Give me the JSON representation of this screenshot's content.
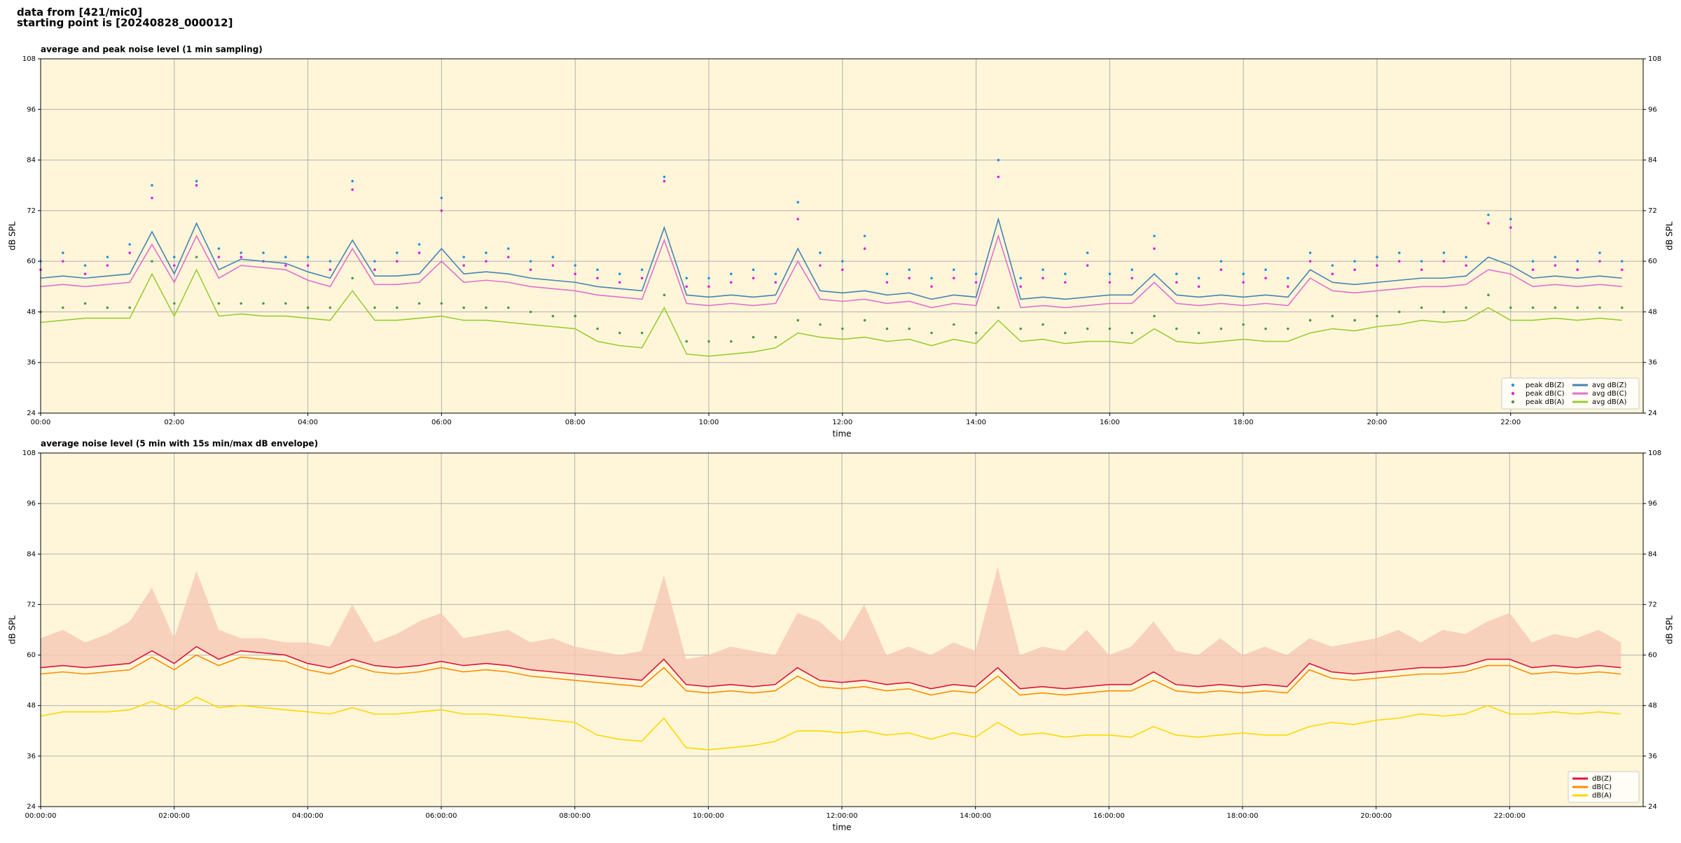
{
  "header": {
    "lines": [
      "data from [421/mic0]",
      "starting point is [20240828_000012]"
    ]
  },
  "chart_data": [
    {
      "type": "line",
      "title": "average and peak noise level (1 min sampling)",
      "xlabel": "time",
      "ylabel": "dB SPL",
      "x": [
        "00:00",
        "00:20",
        "00:40",
        "01:00",
        "01:20",
        "01:40",
        "02:00",
        "02:20",
        "02:40",
        "03:00",
        "03:20",
        "03:40",
        "04:00",
        "04:20",
        "04:40",
        "05:00",
        "05:20",
        "05:40",
        "06:00",
        "06:20",
        "06:40",
        "07:00",
        "07:20",
        "07:40",
        "08:00",
        "08:20",
        "08:40",
        "09:00",
        "09:20",
        "09:40",
        "10:00",
        "10:20",
        "10:40",
        "11:00",
        "11:20",
        "11:40",
        "12:00",
        "12:20",
        "12:40",
        "13:00",
        "13:20",
        "13:40",
        "14:00",
        "14:20",
        "14:40",
        "15:00",
        "15:20",
        "15:40",
        "16:00",
        "16:20",
        "16:40",
        "17:00",
        "17:20",
        "17:40",
        "18:00",
        "18:20",
        "18:40",
        "19:00",
        "19:20",
        "19:40",
        "20:00",
        "20:20",
        "20:40",
        "21:00",
        "21:20",
        "21:40",
        "22:00",
        "22:20",
        "22:40",
        "23:00",
        "23:20",
        "23:40"
      ],
      "xlim": [
        "00:00",
        "23:59"
      ],
      "xticks": [
        "00:00",
        "02:00",
        "04:00",
        "06:00",
        "08:00",
        "10:00",
        "12:00",
        "14:00",
        "16:00",
        "18:00",
        "20:00",
        "22:00"
      ],
      "ylim": [
        24,
        108
      ],
      "yticks": [
        24,
        36,
        48,
        60,
        72,
        84,
        96,
        108
      ],
      "grid": true,
      "legend": "lower right",
      "legend_columns": 2,
      "background": "#fff6d9",
      "series": [
        {
          "name": "peak dB(Z)",
          "color": "#2a8fe0",
          "style": "dots",
          "values": [
            60,
            62,
            59,
            61,
            64,
            78,
            61,
            79,
            63,
            62,
            62,
            61,
            61,
            60,
            79,
            60,
            62,
            64,
            75,
            61,
            62,
            63,
            60,
            61,
            59,
            58,
            57,
            58,
            80,
            56,
            56,
            57,
            58,
            57,
            74,
            62,
            60,
            66,
            57,
            58,
            56,
            58,
            57,
            84,
            56,
            58,
            57,
            62,
            57,
            58,
            66,
            57,
            56,
            60,
            57,
            58,
            56,
            62,
            59,
            60,
            61,
            62,
            60,
            62,
            61,
            71,
            70,
            60,
            61,
            60,
            62,
            60
          ]
        },
        {
          "name": "peak dB(C)",
          "color": "#e020e0",
          "style": "dots",
          "values": [
            58,
            60,
            57,
            59,
            62,
            75,
            59,
            78,
            61,
            61,
            60,
            59,
            59,
            58,
            77,
            58,
            60,
            62,
            72,
            59,
            60,
            61,
            58,
            59,
            57,
            56,
            55,
            56,
            79,
            54,
            54,
            55,
            56,
            55,
            70,
            59,
            58,
            63,
            55,
            56,
            54,
            56,
            55,
            80,
            54,
            56,
            55,
            59,
            55,
            56,
            63,
            55,
            54,
            58,
            55,
            56,
            54,
            60,
            57,
            58,
            59,
            60,
            58,
            60,
            59,
            69,
            68,
            58,
            59,
            58,
            60,
            58
          ]
        },
        {
          "name": "peak dB(A)",
          "color": "#4a9a4a",
          "style": "dots",
          "values": [
            48,
            49,
            50,
            49,
            49,
            60,
            50,
            61,
            50,
            50,
            50,
            50,
            49,
            49,
            56,
            49,
            49,
            50,
            50,
            49,
            49,
            49,
            48,
            47,
            47,
            44,
            43,
            43,
            52,
            41,
            41,
            41,
            42,
            42,
            46,
            45,
            44,
            46,
            44,
            44,
            43,
            45,
            43,
            49,
            44,
            45,
            43,
            44,
            44,
            43,
            47,
            44,
            43,
            44,
            45,
            44,
            44,
            46,
            47,
            46,
            47,
            48,
            49,
            48,
            49,
            52,
            49,
            49,
            49,
            49,
            49,
            49
          ]
        },
        {
          "name": "avg dB(Z)",
          "color": "#4682b4",
          "style": "line",
          "values": [
            56,
            56.5,
            56,
            56.5,
            57,
            67,
            57,
            69,
            58,
            60.5,
            60,
            59.5,
            57.5,
            56,
            65,
            56.5,
            56.5,
            57,
            63,
            57,
            57.5,
            57,
            56,
            55.5,
            55,
            54,
            53.5,
            53,
            68,
            52,
            51.5,
            52,
            51.5,
            52,
            63,
            53,
            52.5,
            53,
            52,
            52.5,
            51,
            52,
            51.5,
            70,
            51,
            51.5,
            51,
            51.5,
            52,
            52,
            57,
            52,
            51.5,
            52,
            51.5,
            52,
            51.5,
            58,
            55,
            54.5,
            55,
            55.5,
            56,
            56,
            56.5,
            61,
            59,
            56,
            56.5,
            56,
            56.5,
            56
          ]
        },
        {
          "name": "avg dB(C)",
          "color": "#e070d0",
          "style": "line",
          "values": [
            54,
            54.5,
            54,
            54.5,
            55,
            64,
            55,
            66,
            56,
            59,
            58.5,
            58,
            55.5,
            54,
            63,
            54.5,
            54.5,
            55,
            60,
            55,
            55.5,
            55,
            54,
            53.5,
            53,
            52,
            51.5,
            51,
            65,
            50,
            49.5,
            50,
            49.5,
            50,
            60,
            51,
            50.5,
            51,
            50,
            50.5,
            49,
            50,
            49.5,
            66,
            49,
            49.5,
            49,
            49.5,
            50,
            50,
            55,
            50,
            49.5,
            50,
            49.5,
            50,
            49.5,
            56,
            53,
            52.5,
            53,
            53.5,
            54,
            54,
            54.5,
            58,
            57,
            54,
            54.5,
            54,
            54.5,
            54
          ]
        },
        {
          "name": "avg dB(A)",
          "color": "#9acd32",
          "style": "line",
          "values": [
            45.5,
            46,
            46.5,
            46.5,
            46.5,
            57,
            47,
            58,
            47,
            47.5,
            47,
            47,
            46.5,
            46,
            53,
            46,
            46,
            46.5,
            47,
            46,
            46,
            45.5,
            45,
            44.5,
            44,
            41,
            40,
            39.5,
            49,
            38,
            37.5,
            38,
            38.5,
            39.5,
            43,
            42,
            41.5,
            42,
            41,
            41.5,
            40,
            41.5,
            40.5,
            46,
            41,
            41.5,
            40.5,
            41,
            41,
            40.5,
            44,
            41,
            40.5,
            41,
            41.5,
            41,
            41,
            43,
            44,
            43.5,
            44.5,
            45,
            46,
            45.5,
            46,
            49,
            46,
            46,
            46.5,
            46,
            46.5,
            46
          ]
        }
      ]
    },
    {
      "type": "line",
      "title": "average noise level (5 min with 15s min/max dB envelope)",
      "xlabel": "time",
      "ylabel": "dB SPL",
      "x": [
        "00:00",
        "00:20",
        "00:40",
        "01:00",
        "01:20",
        "01:40",
        "02:00",
        "02:20",
        "02:40",
        "03:00",
        "03:20",
        "03:40",
        "04:00",
        "04:20",
        "04:40",
        "05:00",
        "05:20",
        "05:40",
        "06:00",
        "06:20",
        "06:40",
        "07:00",
        "07:20",
        "07:40",
        "08:00",
        "08:20",
        "08:40",
        "09:00",
        "09:20",
        "09:40",
        "10:00",
        "10:20",
        "10:40",
        "11:00",
        "11:20",
        "11:40",
        "12:00",
        "12:20",
        "12:40",
        "13:00",
        "13:20",
        "13:40",
        "14:00",
        "14:20",
        "14:40",
        "15:00",
        "15:20",
        "15:40",
        "16:00",
        "16:20",
        "16:40",
        "17:00",
        "17:20",
        "17:40",
        "18:00",
        "18:20",
        "18:40",
        "19:00",
        "19:20",
        "19:40",
        "20:00",
        "20:20",
        "20:40",
        "21:00",
        "21:20",
        "21:40",
        "22:00",
        "22:20",
        "22:40",
        "23:00",
        "23:20",
        "23:40"
      ],
      "xlim": [
        "00:00:00",
        "23:59:59"
      ],
      "xticks": [
        "00:00:00",
        "02:00:00",
        "04:00:00",
        "06:00:00",
        "08:00:00",
        "10:00:00",
        "12:00:00",
        "14:00:00",
        "16:00:00",
        "18:00:00",
        "20:00:00",
        "22:00:00"
      ],
      "ylim": [
        24,
        108
      ],
      "yticks": [
        24,
        36,
        48,
        60,
        72,
        84,
        96,
        108
      ],
      "grid": true,
      "legend": "lower right",
      "legend_columns": 1,
      "background": "#fff6d9",
      "envelope_color": "#f6c8b4",
      "series": [
        {
          "name": "dB(Z)",
          "color": "#dc143c",
          "style": "line",
          "values": [
            57,
            57.5,
            57,
            57.5,
            58,
            61,
            58,
            62,
            59,
            61,
            60.5,
            60,
            58,
            57,
            59,
            57.5,
            57,
            57.5,
            58.5,
            57.5,
            58,
            57.5,
            56.5,
            56,
            55.5,
            55,
            54.5,
            54,
            59,
            53,
            52.5,
            53,
            52.5,
            53,
            57,
            54,
            53.5,
            54,
            53,
            53.5,
            52,
            53,
            52.5,
            57,
            52,
            52.5,
            52,
            52.5,
            53,
            53,
            56,
            53,
            52.5,
            53,
            52.5,
            53,
            52.5,
            58,
            56,
            55.5,
            56,
            56.5,
            57,
            57,
            57.5,
            59,
            59,
            57,
            57.5,
            57,
            57.5,
            57
          ],
          "envelope_max": [
            64,
            66,
            63,
            65,
            68,
            76,
            64,
            80,
            66,
            64,
            64,
            63,
            63,
            62,
            72,
            63,
            65,
            68,
            70,
            64,
            65,
            66,
            63,
            64,
            62,
            61,
            60,
            61,
            79,
            59,
            60,
            62,
            61,
            60,
            70,
            68,
            63,
            72,
            60,
            62,
            60,
            63,
            61,
            81,
            60,
            62,
            61,
            66,
            60,
            62,
            68,
            61,
            60,
            64,
            60,
            62,
            60,
            64,
            62,
            63,
            64,
            66,
            63,
            66,
            65,
            68,
            70,
            63,
            65,
            64,
            66,
            63
          ]
        },
        {
          "name": "dB(C)",
          "color": "#ff8c00",
          "style": "line",
          "values": [
            55.5,
            56,
            55.5,
            56,
            56.5,
            59.5,
            56.5,
            60,
            57.5,
            59.5,
            59,
            58.5,
            56.5,
            55.5,
            57.5,
            56,
            55.5,
            56,
            57,
            56,
            56.5,
            56,
            55,
            54.5,
            54,
            53.5,
            53,
            52.5,
            57,
            51.5,
            51,
            51.5,
            51,
            51.5,
            55,
            52.5,
            52,
            52.5,
            51.5,
            52,
            50.5,
            51.5,
            51,
            55,
            50.5,
            51,
            50.5,
            51,
            51.5,
            51.5,
            54,
            51.5,
            51,
            51.5,
            51,
            51.5,
            51,
            56.5,
            54.5,
            54,
            54.5,
            55,
            55.5,
            55.5,
            56,
            57.5,
            57.5,
            55.5,
            56,
            55.5,
            56,
            55.5
          ]
        },
        {
          "name": "dB(A)",
          "color": "#ffd700",
          "style": "line",
          "values": [
            45.5,
            46.5,
            46.5,
            46.5,
            47,
            49,
            47,
            50,
            47.5,
            48,
            47.5,
            47,
            46.5,
            46,
            47.5,
            46,
            46,
            46.5,
            47,
            46,
            46,
            45.5,
            45,
            44.5,
            44,
            41,
            40,
            39.5,
            45,
            38,
            37.5,
            38,
            38.5,
            39.5,
            42,
            42,
            41.5,
            42,
            41,
            41.5,
            40,
            41.5,
            40.5,
            44,
            41,
            41.5,
            40.5,
            41,
            41,
            40.5,
            43,
            41,
            40.5,
            41,
            41.5,
            41,
            41,
            43,
            44,
            43.5,
            44.5,
            45,
            46,
            45.5,
            46,
            48,
            46,
            46,
            46.5,
            46,
            46.5,
            46
          ]
        }
      ]
    }
  ]
}
